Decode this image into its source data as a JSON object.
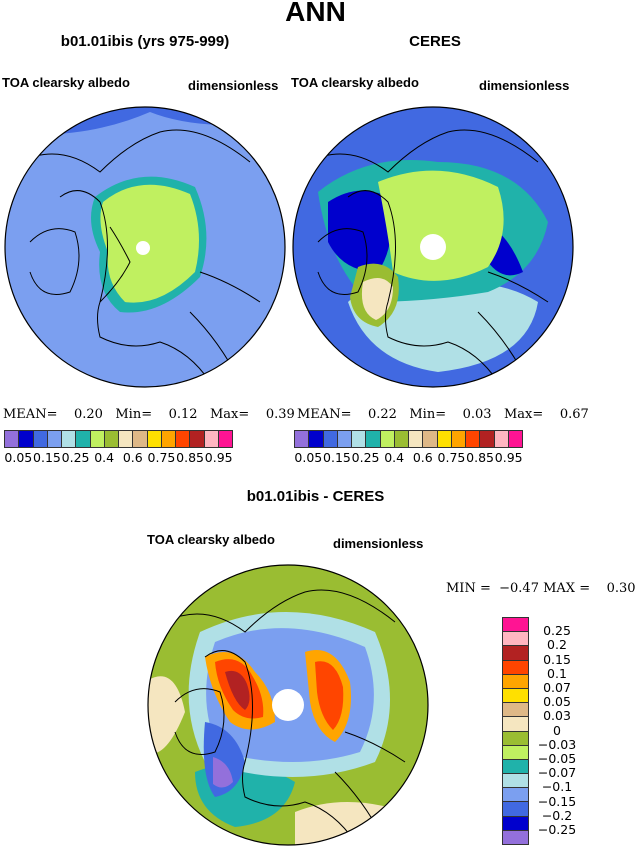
{
  "title": "ANN",
  "panels": [
    {
      "title": "b01.01ibis (yrs 975-999)",
      "variable": "TOA clearsky albedo",
      "units": "dimensionless",
      "stats": {
        "mean_label": "MEAN=",
        "mean": "0.20",
        "min_label": "Min=",
        "min": "0.12",
        "max_label": "Max=",
        "max": "0.39"
      }
    },
    {
      "title": "CERES",
      "variable": "TOA clearsky albedo",
      "units": "dimensionless",
      "stats": {
        "mean_label": "MEAN=",
        "mean": "0.22",
        "min_label": "Min=",
        "min": "0.03",
        "max_label": "Max=",
        "max": "0.67"
      }
    }
  ],
  "abs_colorbar": {
    "colors": [
      "#9370db",
      "#0000cd",
      "#4169e1",
      "#7b9ff0",
      "#b0e0e6",
      "#20b2aa",
      "#c0f060",
      "#9abd32",
      "#f5e6c0",
      "#deb887",
      "#ffe000",
      "#ffa500",
      "#ff4500",
      "#b22222",
      "#ffb6c1",
      "#ff1493"
    ],
    "labels": [
      "0.05",
      "0.15",
      "0.25",
      "0.4",
      "0.6",
      "0.75",
      "0.85",
      "0.95"
    ]
  },
  "diff_panel": {
    "title": "b01.01ibis - CERES",
    "variable": "TOA clearsky albedo",
    "units": "dimensionless",
    "min_label": "MIN =",
    "min": "−0.47",
    "max_label": "MAX =",
    "max": "0.30"
  },
  "diff_colorbar": {
    "colors": [
      "#ff1493",
      "#ffb6c1",
      "#b22222",
      "#ff4500",
      "#ffa500",
      "#ffe000",
      "#deb887",
      "#f5e6c0",
      "#9abd32",
      "#c0f060",
      "#20b2aa",
      "#b0e0e6",
      "#7b9ff0",
      "#4169e1",
      "#0000cd",
      "#9370db"
    ],
    "labels": [
      "0.25",
      "0.2",
      "0.15",
      "0.1",
      "0.07",
      "0.05",
      "0.03",
      "0",
      "−0.03",
      "−0.05",
      "−0.07",
      "−0.1",
      "−0.15",
      "−0.2",
      "−0.25"
    ]
  }
}
